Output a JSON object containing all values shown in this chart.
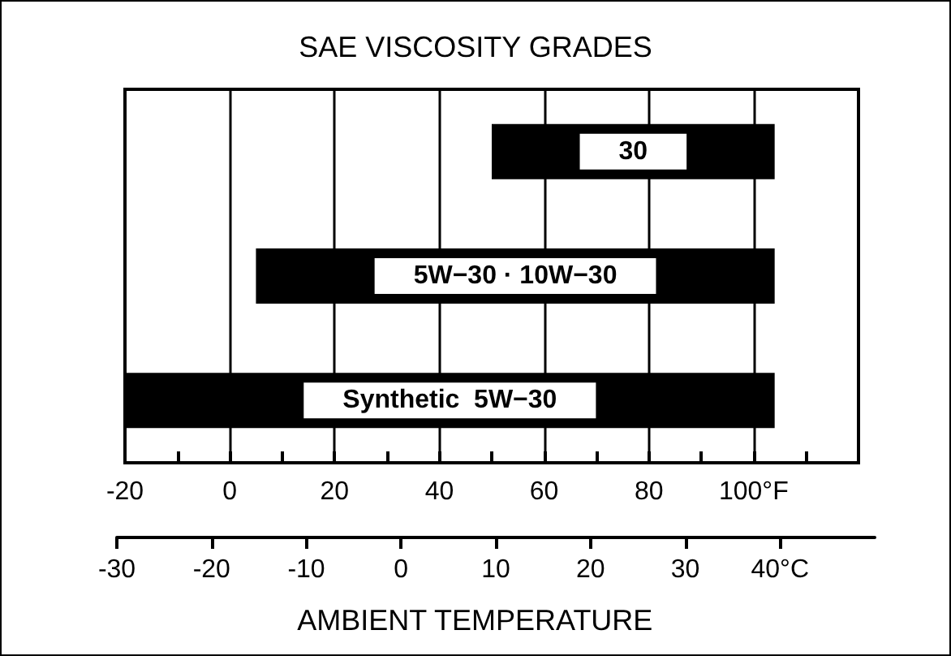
{
  "chart_data": {
    "type": "bar",
    "orientation": "horizontal",
    "title": "SAE VISCOSITY GRADES",
    "xlabel": "AMBIENT TEMPERATURE",
    "categories": [
      "30",
      "5W−30 · 10W−30",
      "Synthetic  5W−30"
    ],
    "base": [
      50,
      5,
      -20
    ],
    "values": [
      54,
      99,
      124
    ],
    "color": "#000000",
    "xlim": [
      -20,
      120
    ],
    "xticks": [
      -20,
      {
        "value": -10,
        "label": null
      },
      0,
      {
        "value": 10,
        "label": null
      },
      20,
      {
        "value": 30,
        "label": null
      },
      40,
      {
        "value": 50,
        "label": null
      },
      60,
      {
        "value": 70,
        "label": null
      },
      80,
      {
        "value": 90,
        "label": null
      },
      {
        "value": 100,
        "label": "100°F"
      },
      {
        "value": 110,
        "label": null
      }
    ],
    "x2lim": [
      -30,
      50
    ],
    "x2ticks": [
      -30,
      -20,
      -10,
      0,
      10,
      20,
      30,
      {
        "value": 40,
        "label": "40°C"
      }
    ],
    "grid": "x",
    "tick_labels": "x"
  }
}
